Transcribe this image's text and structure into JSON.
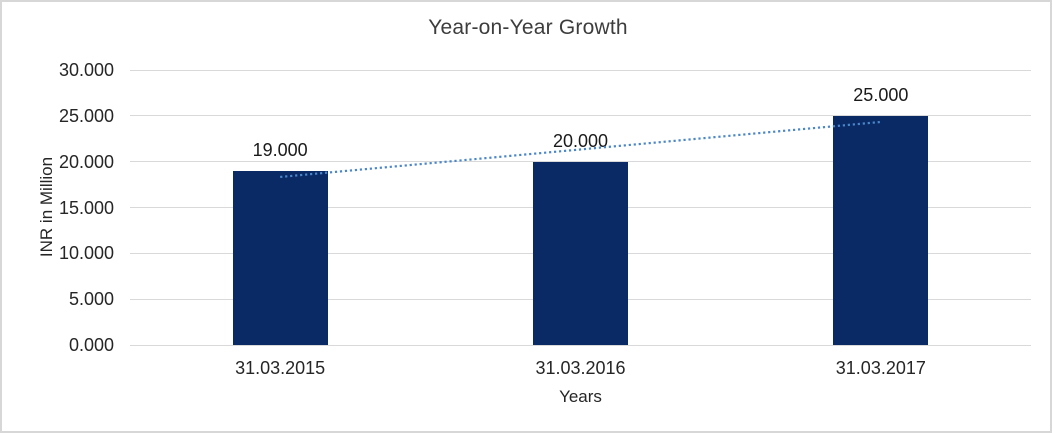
{
  "frame": {
    "background_color": "#FFFFFF",
    "border_color": "#D7D7D7"
  },
  "chart_data": {
    "type": "bar",
    "title": "Year-on-Year Growth",
    "xlabel": "Years",
    "ylabel": "INR in Million",
    "categories": [
      "31.03.2015",
      "31.03.2016",
      "31.03.2017"
    ],
    "values": [
      19000,
      20000,
      25000
    ],
    "data_labels": [
      "19.000",
      "20.000",
      "25.000"
    ],
    "ylim": [
      0,
      30000
    ],
    "ytick_step": 5000,
    "ytick_labels": [
      "0.000",
      "5.000",
      "10.000",
      "15.000",
      "20.000",
      "25.000",
      "30.000"
    ],
    "grid": "horizontal",
    "gridline_color": "#D9D9D9",
    "legend": "none",
    "bar_color": "#0A2A66",
    "trendline": {
      "type": "linear",
      "style": "dotted",
      "color": "#4B86C8",
      "start_value": 18333,
      "end_value": 24333
    }
  }
}
